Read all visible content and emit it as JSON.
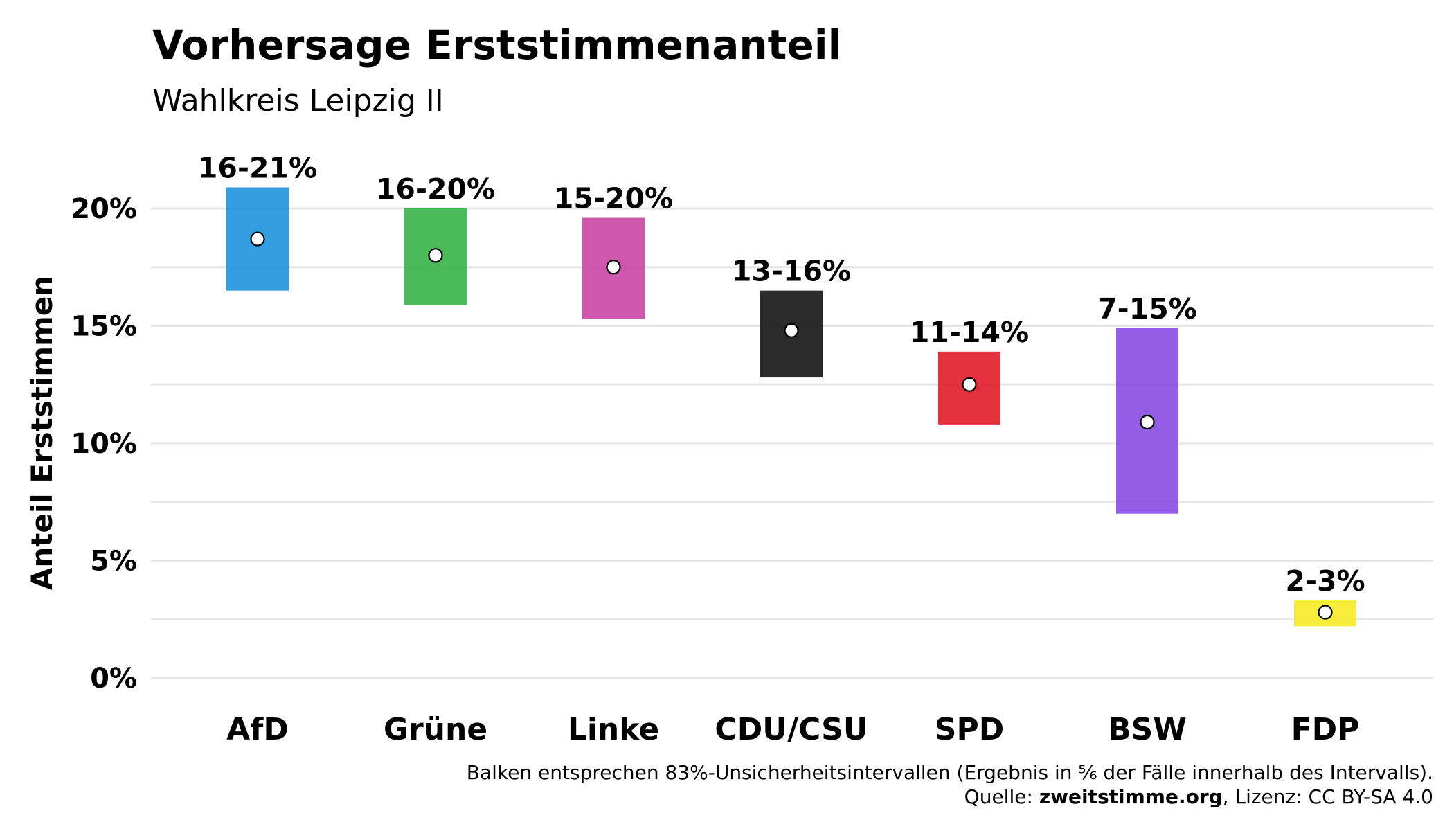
{
  "chart_data": {
    "type": "bar",
    "title": "Vorhersage Erststimmenanteil",
    "subtitle": "Wahlkreis Leipzig II",
    "xlabel": "",
    "ylabel": "Anteil Erststimmen",
    "ylim": [
      0,
      22
    ],
    "yticks": [
      0,
      5,
      10,
      15,
      20
    ],
    "ytick_labels": [
      "0%",
      "5%",
      "10%",
      "15%",
      "20%"
    ],
    "minor_grid": [
      2.5,
      7.5,
      12.5,
      17.5
    ],
    "grid": true,
    "legend": "none",
    "categories": [
      "AfD",
      "Grüne",
      "Linke",
      "CDU/CSU",
      "SPD",
      "BSW",
      "FDP"
    ],
    "series": [
      {
        "lower": [
          16.5,
          15.9,
          15.3,
          12.8,
          10.8,
          7.0,
          2.2
        ],
        "upper": [
          20.9,
          20.0,
          19.6,
          16.5,
          13.9,
          14.9,
          3.3
        ],
        "point": [
          18.7,
          18.0,
          17.5,
          14.8,
          12.5,
          10.9,
          2.8
        ],
        "labels": [
          "16-21%",
          "16-20%",
          "15-20%",
          "13-16%",
          "11-14%",
          "7-15%",
          "2-3%"
        ]
      }
    ],
    "colors": [
      "#2196dd",
      "#3cb44b",
      "#c94aa7",
      "#1a1a1a",
      "#e3202c",
      "#8c4ee2",
      "#f7ec2c"
    ],
    "caption_line1": "Balken entsprechen 83%-Unsicherheitsintervallen (Ergebnis in ⅚ der Fälle innerhalb des Intervalls).",
    "caption_source_prefix": "Quelle: ",
    "caption_source_name": "zweitstimme.org",
    "caption_license": ", Lizenz: CC BY-SA 4.0"
  }
}
